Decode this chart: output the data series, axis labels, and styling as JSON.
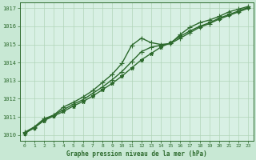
{
  "title": "Graphe pression niveau de la mer (hPa)",
  "background_color": "#c8e8d4",
  "plot_bg_color": "#d8f0e4",
  "grid_color": "#b0d4b8",
  "line_color": "#2d6a2d",
  "xlim": [
    -0.5,
    23.5
  ],
  "ylim": [
    1009.7,
    1017.3
  ],
  "yticks": [
    1010,
    1011,
    1012,
    1013,
    1014,
    1015,
    1016,
    1017
  ],
  "xticks": [
    0,
    1,
    2,
    3,
    4,
    5,
    6,
    7,
    8,
    9,
    10,
    11,
    12,
    13,
    14,
    15,
    16,
    17,
    18,
    19,
    20,
    21,
    22,
    23
  ],
  "series": [
    {
      "x": [
        0,
        1,
        2,
        3,
        4,
        5,
        6,
        7,
        8,
        9,
        10,
        11,
        12,
        13,
        14,
        15,
        16,
        17,
        18,
        19,
        20,
        21,
        22,
        23
      ],
      "y": [
        1010.1,
        1010.4,
        1010.8,
        1011.05,
        1011.3,
        1011.6,
        1011.85,
        1012.15,
        1012.5,
        1012.85,
        1013.25,
        1013.7,
        1014.15,
        1014.5,
        1014.85,
        1015.1,
        1015.45,
        1015.75,
        1016.0,
        1016.2,
        1016.45,
        1016.65,
        1016.85,
        1017.05
      ],
      "marker": "*",
      "markersize": 3.5,
      "linewidth": 1.0
    },
    {
      "x": [
        0,
        1,
        2,
        3,
        4,
        5,
        6,
        7,
        8,
        9,
        10,
        11,
        12,
        13,
        14,
        15,
        16,
        17,
        18,
        19,
        20,
        21,
        22,
        23
      ],
      "y": [
        1010.1,
        1010.4,
        1010.85,
        1011.1,
        1011.4,
        1011.7,
        1011.95,
        1012.3,
        1012.65,
        1013.05,
        1013.5,
        1014.05,
        1014.6,
        1014.85,
        1014.95,
        1015.05,
        1015.35,
        1015.65,
        1015.95,
        1016.15,
        1016.4,
        1016.6,
        1016.8,
        1017.0
      ],
      "marker": "+",
      "markersize": 4,
      "linewidth": 1.0
    },
    {
      "x": [
        0,
        1,
        2,
        3,
        4,
        5,
        6,
        7,
        8,
        9,
        10,
        11,
        12,
        13,
        14,
        15,
        16,
        17,
        18,
        19,
        20,
        21,
        22,
        23
      ],
      "y": [
        1010.15,
        1010.45,
        1010.9,
        1011.1,
        1011.55,
        1011.8,
        1012.1,
        1012.45,
        1012.9,
        1013.35,
        1013.95,
        1014.95,
        1015.35,
        1015.1,
        1015.0,
        1015.05,
        1015.55,
        1015.95,
        1016.2,
        1016.35,
        1016.55,
        1016.8,
        1016.95,
        1017.1
      ],
      "marker": "+",
      "markersize": 4,
      "linewidth": 1.0
    }
  ]
}
